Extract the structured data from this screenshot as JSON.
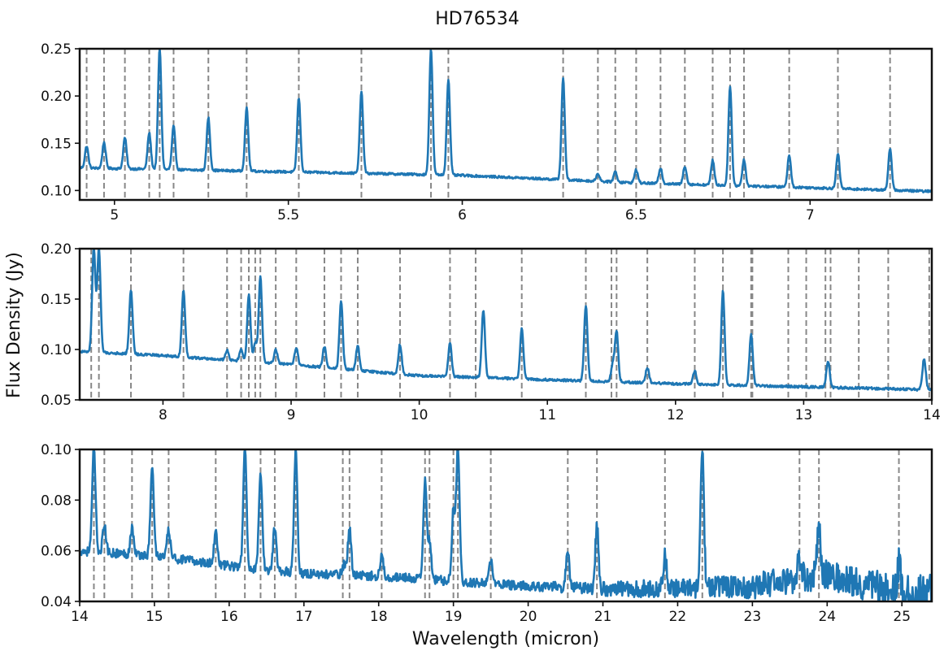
{
  "title": "HD76534",
  "xlabel": "Wavelength (micron)",
  "ylabel": "Flux Density (Jy)",
  "colors": {
    "spectrum": "#1f77b4",
    "line_markers": "#888888",
    "axes": "#111111"
  },
  "chart_data": [
    {
      "type": "line",
      "panel": "top",
      "xlim": [
        4.9,
        7.35
      ],
      "ylim": [
        0.09,
        0.25
      ],
      "xticks": [
        5,
        5.5,
        6,
        6.5,
        7
      ],
      "xtick_labels": [
        "5",
        "5.5",
        "6",
        "6.5",
        "7"
      ],
      "yticks": [
        0.1,
        0.15,
        0.2,
        0.25
      ],
      "ytick_labels": [
        "0.10",
        "0.15",
        "0.20",
        "0.25"
      ],
      "continuum": [
        [
          4.9,
          0.124
        ],
        [
          5.6,
          0.119
        ],
        [
          6.0,
          0.116
        ],
        [
          6.5,
          0.108
        ],
        [
          7.0,
          0.103
        ],
        [
          7.35,
          0.099
        ]
      ],
      "noise": 0.0012,
      "emission_lines": [
        {
          "x": 4.92,
          "peak": 0.147
        },
        {
          "x": 4.97,
          "peak": 0.151
        },
        {
          "x": 5.03,
          "peak": 0.156
        },
        {
          "x": 5.1,
          "peak": 0.161
        },
        {
          "x": 5.13,
          "peak": 0.25
        },
        {
          "x": 5.17,
          "peak": 0.168
        },
        {
          "x": 5.27,
          "peak": 0.177
        },
        {
          "x": 5.38,
          "peak": 0.187
        },
        {
          "x": 5.53,
          "peak": 0.198
        },
        {
          "x": 5.71,
          "peak": 0.205
        },
        {
          "x": 5.91,
          "peak": 0.25
        },
        {
          "x": 5.96,
          "peak": 0.218
        },
        {
          "x": 6.29,
          "peak": 0.219
        },
        {
          "x": 6.39,
          "peak": 0.118
        },
        {
          "x": 6.44,
          "peak": 0.12
        },
        {
          "x": 6.5,
          "peak": 0.122
        },
        {
          "x": 6.57,
          "peak": 0.124
        },
        {
          "x": 6.64,
          "peak": 0.126
        },
        {
          "x": 6.72,
          "peak": 0.132
        },
        {
          "x": 6.77,
          "peak": 0.211
        },
        {
          "x": 6.81,
          "peak": 0.133
        },
        {
          "x": 6.94,
          "peak": 0.138
        },
        {
          "x": 7.08,
          "peak": 0.139
        },
        {
          "x": 7.23,
          "peak": 0.145
        }
      ],
      "marker_lines": [
        4.92,
        4.97,
        5.03,
        5.1,
        5.13,
        5.17,
        5.27,
        5.38,
        5.53,
        5.71,
        5.91,
        5.96,
        6.29,
        6.39,
        6.44,
        6.5,
        6.57,
        6.64,
        6.72,
        6.77,
        6.81,
        6.94,
        7.08,
        7.23
      ]
    },
    {
      "type": "line",
      "panel": "middle",
      "xlim": [
        7.35,
        14.0
      ],
      "ylim": [
        0.05,
        0.2
      ],
      "xticks": [
        8,
        9,
        10,
        11,
        12,
        13,
        14
      ],
      "xtick_labels": [
        "8",
        "9",
        "10",
        "11",
        "12",
        "13",
        "14"
      ],
      "yticks": [
        0.05,
        0.1,
        0.15,
        0.2
      ],
      "ytick_labels": [
        "0.05",
        "0.10",
        "0.15",
        "0.20"
      ],
      "continuum": [
        [
          7.35,
          0.098
        ],
        [
          8.0,
          0.094
        ],
        [
          9.0,
          0.085
        ],
        [
          10.0,
          0.074
        ],
        [
          11.0,
          0.07
        ],
        [
          12.0,
          0.066
        ],
        [
          13.0,
          0.063
        ],
        [
          14.0,
          0.06
        ]
      ],
      "noise": 0.0012,
      "emission_lines": [
        {
          "x": 7.46,
          "peak": 0.2
        },
        {
          "x": 7.5,
          "peak": 0.2
        },
        {
          "x": 7.75,
          "peak": 0.159
        },
        {
          "x": 8.16,
          "peak": 0.159
        },
        {
          "x": 8.5,
          "peak": 0.099
        },
        {
          "x": 8.61,
          "peak": 0.1
        },
        {
          "x": 8.67,
          "peak": 0.154
        },
        {
          "x": 8.72,
          "peak": 0.106
        },
        {
          "x": 8.76,
          "peak": 0.172
        },
        {
          "x": 8.88,
          "peak": 0.1
        },
        {
          "x": 9.04,
          "peak": 0.102
        },
        {
          "x": 9.26,
          "peak": 0.103
        },
        {
          "x": 9.39,
          "peak": 0.149
        },
        {
          "x": 9.52,
          "peak": 0.104
        },
        {
          "x": 9.85,
          "peak": 0.105
        },
        {
          "x": 10.24,
          "peak": 0.107
        },
        {
          "x": 10.5,
          "peak": 0.139
        },
        {
          "x": 10.8,
          "peak": 0.121
        },
        {
          "x": 11.3,
          "peak": 0.144
        },
        {
          "x": 11.51,
          "peak": 0.085
        },
        {
          "x": 11.54,
          "peak": 0.118
        },
        {
          "x": 11.78,
          "peak": 0.082
        },
        {
          "x": 12.15,
          "peak": 0.079
        },
        {
          "x": 12.37,
          "peak": 0.158
        },
        {
          "x": 12.59,
          "peak": 0.115
        },
        {
          "x": 13.19,
          "peak": 0.089
        },
        {
          "x": 13.94,
          "peak": 0.091
        }
      ],
      "marker_lines": [
        7.44,
        7.5,
        7.75,
        8.16,
        8.5,
        8.61,
        8.67,
        8.72,
        8.76,
        8.88,
        9.04,
        9.26,
        9.39,
        9.52,
        9.85,
        10.24,
        10.44,
        10.8,
        11.3,
        11.5,
        11.54,
        11.78,
        12.15,
        12.37,
        12.59,
        12.6,
        12.88,
        13.02,
        13.17,
        13.21,
        13.43,
        13.66,
        13.98
      ]
    },
    {
      "type": "line",
      "panel": "bottom",
      "xlim": [
        14.0,
        25.4
      ],
      "ylim": [
        0.04,
        0.1
      ],
      "xticks": [
        14,
        15,
        16,
        17,
        18,
        19,
        20,
        21,
        22,
        23,
        24,
        25
      ],
      "xtick_labels": [
        "14",
        "15",
        "16",
        "17",
        "18",
        "19",
        "20",
        "21",
        "22",
        "23",
        "24",
        "25"
      ],
      "yticks": [
        0.04,
        0.06,
        0.08,
        0.1
      ],
      "ytick_labels": [
        "0.04",
        "0.06",
        "0.08",
        "0.10"
      ],
      "continuum": [
        [
          14.0,
          0.06
        ],
        [
          15.0,
          0.058
        ],
        [
          16.0,
          0.054
        ],
        [
          17.0,
          0.051
        ],
        [
          18.0,
          0.05
        ],
        [
          19.0,
          0.048
        ],
        [
          20.0,
          0.046
        ],
        [
          21.0,
          0.045
        ],
        [
          22.0,
          0.045
        ],
        [
          23.0,
          0.046
        ],
        [
          24.0,
          0.051
        ],
        [
          25.0,
          0.043
        ],
        [
          25.4,
          0.043
        ]
      ],
      "noise": 0.0018,
      "emission_lines": [
        {
          "x": 14.19,
          "peak": 0.1
        },
        {
          "x": 14.33,
          "peak": 0.07
        },
        {
          "x": 14.7,
          "peak": 0.069
        },
        {
          "x": 14.97,
          "peak": 0.093
        },
        {
          "x": 15.19,
          "peak": 0.068
        },
        {
          "x": 15.82,
          "peak": 0.068
        },
        {
          "x": 16.21,
          "peak": 0.1
        },
        {
          "x": 16.42,
          "peak": 0.09
        },
        {
          "x": 16.61,
          "peak": 0.07
        },
        {
          "x": 16.89,
          "peak": 0.1
        },
        {
          "x": 17.54,
          "peak": 0.055
        },
        {
          "x": 17.61,
          "peak": 0.069
        },
        {
          "x": 18.04,
          "peak": 0.058
        },
        {
          "x": 18.62,
          "peak": 0.088
        },
        {
          "x": 18.68,
          "peak": 0.063
        },
        {
          "x": 19.0,
          "peak": 0.076
        },
        {
          "x": 19.06,
          "peak": 0.1
        },
        {
          "x": 19.5,
          "peak": 0.056
        },
        {
          "x": 20.53,
          "peak": 0.06
        },
        {
          "x": 20.92,
          "peak": 0.07
        },
        {
          "x": 21.83,
          "peak": 0.058
        },
        {
          "x": 22.33,
          "peak": 0.1
        },
        {
          "x": 23.63,
          "peak": 0.058
        },
        {
          "x": 23.89,
          "peak": 0.071
        },
        {
          "x": 24.96,
          "peak": 0.054
        }
      ],
      "marker_lines": [
        14.19,
        14.33,
        14.7,
        14.97,
        15.19,
        15.82,
        16.21,
        16.42,
        16.61,
        16.89,
        17.52,
        17.61,
        18.04,
        18.62,
        18.68,
        19.0,
        19.06,
        19.5,
        20.53,
        20.92,
        21.83,
        22.33,
        23.63,
        23.89,
        24.96
      ]
    }
  ]
}
